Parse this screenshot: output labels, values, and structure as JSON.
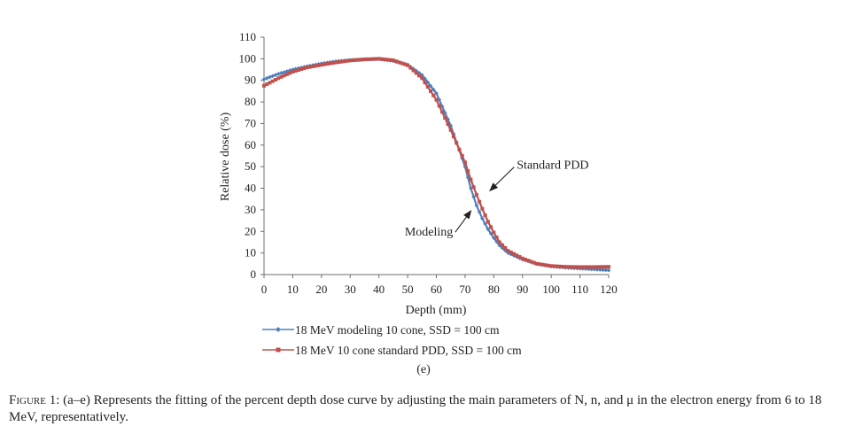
{
  "chart_data": {
    "type": "line",
    "xlabel": "Depth (mm)",
    "ylabel": "Relative dose (%)",
    "xlim": [
      0,
      120
    ],
    "ylim": [
      0,
      110
    ],
    "xticks": [
      0,
      10,
      20,
      30,
      40,
      50,
      60,
      70,
      80,
      90,
      100,
      110,
      120
    ],
    "yticks": [
      0,
      10,
      20,
      30,
      40,
      50,
      60,
      70,
      80,
      90,
      100,
      110
    ],
    "grid": false,
    "series": [
      {
        "name": "18 MeV modeling 10 cone, SSD = 100 cm",
        "color": "#4f81bd",
        "marker": "diamond",
        "x": [
          0,
          5,
          10,
          15,
          20,
          25,
          30,
          35,
          40,
          45,
          50,
          55,
          60,
          65,
          70,
          72,
          74,
          76,
          78,
          80,
          82,
          85,
          90,
          95,
          100,
          105,
          110,
          115,
          120
        ],
        "y": [
          90.5,
          93,
          95,
          96.5,
          97.8,
          98.8,
          99.4,
          99.8,
          99.9,
          99.0,
          97.2,
          92.5,
          84,
          69,
          50,
          40,
          32,
          26,
          21,
          17,
          13.5,
          10,
          7,
          5,
          3.8,
          3.2,
          2.8,
          2.4,
          2.0
        ]
      },
      {
        "name": "18 MeV 10 cone standard PDD, SSD = 100 cm",
        "color": "#c0504d",
        "marker": "square",
        "x": [
          0,
          5,
          10,
          15,
          20,
          25,
          30,
          35,
          40,
          45,
          50,
          55,
          60,
          65,
          70,
          72,
          74,
          76,
          78,
          80,
          82,
          85,
          90,
          95,
          100,
          105,
          110,
          115,
          120
        ],
        "y": [
          87.5,
          91,
          94,
          96,
          97.2,
          98.3,
          99.2,
          99.7,
          100,
          99.3,
          97,
          91,
          81,
          67,
          52,
          44,
          37,
          30.5,
          24.5,
          19.5,
          15,
          11,
          7.5,
          5,
          4,
          3.6,
          3.5,
          3.5,
          3.6
        ]
      }
    ],
    "annotations": [
      {
        "text": "Standard PDD",
        "x": 88,
        "y": 49,
        "arrow_to": [
          78,
          38
        ]
      },
      {
        "text": "Modeling",
        "x": 49,
        "y": 18,
        "arrow_to": [
          73,
          30
        ]
      }
    ],
    "legend_position": "bottom-left"
  },
  "panel_label": "(e)",
  "caption": {
    "figure_label": "Figure 1:",
    "text": " (a–e) Represents the fitting of the percent depth dose curve by adjusting the main parameters of N, n, and μ in the electron energy from 6 to 18 MeV, representatively."
  }
}
